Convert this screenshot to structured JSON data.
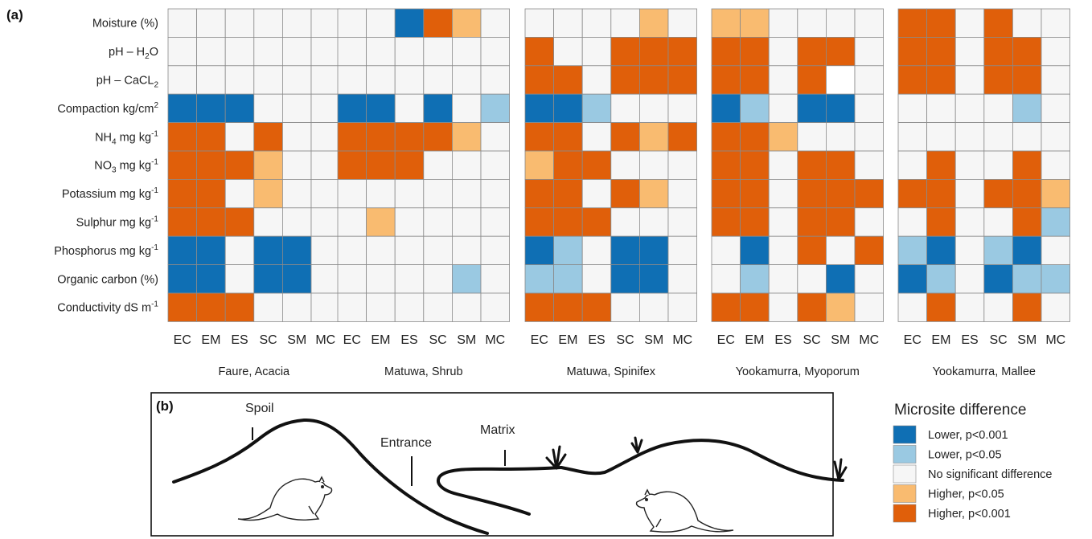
{
  "panel_a_label": "(a)",
  "panel_b_label": "(b)",
  "colors": {
    "L2": "#0f6fb4",
    "L1": "#9ac9e2",
    "N": "#f6f6f6",
    "H1": "#f9bb70",
    "H2": "#e05f0a",
    "W": "#ffffff",
    "grid": "#8a8a8a"
  },
  "chart_data": {
    "type": "heatmap",
    "row_labels": [
      [
        "Moisture (%)"
      ],
      [
        "pH – H",
        {
          "sub": "2"
        },
        "O"
      ],
      [
        "pH – CaCL",
        {
          "sub": "2"
        }
      ],
      [
        "Compaction kg/cm",
        {
          "sup": "2"
        }
      ],
      [
        "NH",
        {
          "sub": "4"
        },
        " mg kg",
        {
          "sup": "-1"
        }
      ],
      [
        "NO",
        {
          "sub": "3"
        },
        " mg kg",
        {
          "sup": "-1"
        }
      ],
      [
        "Potassium mg kg",
        {
          "sup": "-1"
        }
      ],
      [
        "Sulphur mg kg",
        {
          "sup": "-1"
        }
      ],
      [
        "Phosphorus mg kg",
        {
          "sup": "-1"
        }
      ],
      [
        "Organic carbon (%)"
      ],
      [
        "Conductivity dS m",
        {
          "sup": "-1"
        }
      ]
    ],
    "columns": [
      "EC",
      "EM",
      "ES",
      "SC",
      "SM",
      "MC"
    ],
    "legend": {
      "title": "Microsite difference",
      "items": [
        {
          "key": "L2",
          "label": "Lower, p<0.001"
        },
        {
          "key": "L1",
          "label": "Lower, p<0.05"
        },
        {
          "key": "N",
          "label": "No significant difference"
        },
        {
          "key": "H1",
          "label": "Higher, p<0.05"
        },
        {
          "key": "H2",
          "label": "Higher, p<0.001"
        }
      ]
    },
    "sites": [
      {
        "name": "Faure, Acacia",
        "cells": [
          [
            "N",
            "N",
            "N",
            "N",
            "N",
            "N"
          ],
          [
            "N",
            "N",
            "N",
            "N",
            "N",
            "N"
          ],
          [
            "N",
            "N",
            "N",
            "N",
            "N",
            "N"
          ],
          [
            "L2",
            "L2",
            "L2",
            "N",
            "N",
            "N"
          ],
          [
            "H2",
            "H2",
            "N",
            "H2",
            "N",
            "N"
          ],
          [
            "H2",
            "H2",
            "H2",
            "H1",
            "N",
            "N"
          ],
          [
            "H2",
            "H2",
            "N",
            "H1",
            "N",
            "N"
          ],
          [
            "H2",
            "H2",
            "H2",
            "N",
            "N",
            "N"
          ],
          [
            "L2",
            "L2",
            "N",
            "L2",
            "L2",
            "N"
          ],
          [
            "L2",
            "L2",
            "N",
            "L2",
            "L2",
            "N"
          ],
          [
            "H2",
            "H2",
            "H2",
            "N",
            "N",
            "N"
          ]
        ]
      },
      {
        "name": "Matuwa, Shrub",
        "cells": [
          [
            "N",
            "N",
            "L2",
            "H2",
            "H1",
            "N"
          ],
          [
            "N",
            "N",
            "N",
            "N",
            "N",
            "N"
          ],
          [
            "N",
            "N",
            "N",
            "N",
            "N",
            "N"
          ],
          [
            "L2",
            "L2",
            "N",
            "L2",
            "N",
            "L1"
          ],
          [
            "H2",
            "H2",
            "H2",
            "H2",
            "H1",
            "N"
          ],
          [
            "H2",
            "H2",
            "H2",
            "N",
            "N",
            "N"
          ],
          [
            "N",
            "N",
            "N",
            "N",
            "N",
            "N"
          ],
          [
            "N",
            "H1",
            "N",
            "N",
            "N",
            "N"
          ],
          [
            "N",
            "N",
            "N",
            "N",
            "N",
            "N"
          ],
          [
            "N",
            "N",
            "N",
            "N",
            "L1",
            "N"
          ],
          [
            "N",
            "N",
            "N",
            "N",
            "N",
            "N"
          ]
        ]
      },
      {
        "name": "Matuwa, Spinifex",
        "cells": [
          [
            "N",
            "N",
            "N",
            "N",
            "H1",
            "N"
          ],
          [
            "H2",
            "N",
            "N",
            "H2",
            "H2",
            "H2"
          ],
          [
            "H2",
            "H2",
            "N",
            "H2",
            "H2",
            "H2"
          ],
          [
            "L2",
            "L2",
            "L1",
            "N",
            "N",
            "N"
          ],
          [
            "H2",
            "H2",
            "N",
            "H2",
            "H1",
            "H2"
          ],
          [
            "H1",
            "H2",
            "H2",
            "N",
            "N",
            "N"
          ],
          [
            "H2",
            "H2",
            "N",
            "H2",
            "H1",
            "N"
          ],
          [
            "H2",
            "H2",
            "H2",
            "N",
            "N",
            "N"
          ],
          [
            "L2",
            "L1",
            "N",
            "L2",
            "L2",
            "N"
          ],
          [
            "L1",
            "L1",
            "N",
            "L2",
            "L2",
            "N"
          ],
          [
            "H2",
            "H2",
            "H2",
            "N",
            "N",
            "N"
          ]
        ]
      },
      {
        "name": "Yookamurra, Myoporum",
        "cells": [
          [
            "H1",
            "H1",
            "N",
            "N",
            "N",
            "N"
          ],
          [
            "H2",
            "H2",
            "N",
            "H2",
            "H2",
            "N"
          ],
          [
            "H2",
            "H2",
            "N",
            "H2",
            "W",
            "N"
          ],
          [
            "L2",
            "L1",
            "N",
            "L2",
            "L2",
            "N"
          ],
          [
            "H2",
            "H2",
            "H1",
            "N",
            "N",
            "N"
          ],
          [
            "H2",
            "H2",
            "N",
            "H2",
            "H2",
            "N"
          ],
          [
            "H2",
            "H2",
            "N",
            "H2",
            "H2",
            "H2"
          ],
          [
            "H2",
            "H2",
            "N",
            "H2",
            "H2",
            "N"
          ],
          [
            "N",
            "L2",
            "N",
            "H2",
            "N",
            "H2"
          ],
          [
            "N",
            "L1",
            "N",
            "N",
            "L2",
            "N"
          ],
          [
            "H2",
            "H2",
            "N",
            "H2",
            "H1",
            "N"
          ]
        ]
      },
      {
        "name": "Yookamurra, Mallee",
        "cells": [
          [
            "H2",
            "H2",
            "N",
            "H2",
            "N",
            "N"
          ],
          [
            "H2",
            "H2",
            "N",
            "H2",
            "H2",
            "N"
          ],
          [
            "H2",
            "H2",
            "N",
            "H2",
            "H2",
            "N"
          ],
          [
            "N",
            "N",
            "N",
            "N",
            "L1",
            "N"
          ],
          [
            "N",
            "N",
            "N",
            "N",
            "N",
            "N"
          ],
          [
            "N",
            "H2",
            "N",
            "N",
            "H2",
            "N"
          ],
          [
            "H2",
            "H2",
            "N",
            "H2",
            "H2",
            "H1"
          ],
          [
            "N",
            "H2",
            "N",
            "N",
            "H2",
            "L1"
          ],
          [
            "L1",
            "L2",
            "N",
            "L1",
            "L2",
            "N"
          ],
          [
            "L2",
            "L1",
            "N",
            "L2",
            "L1",
            "L1"
          ],
          [
            "N",
            "H2",
            "N",
            "N",
            "H2",
            "N"
          ]
        ]
      }
    ]
  },
  "panel_b": {
    "labels": {
      "spoil": "Spoil",
      "entrance": "Entrance",
      "matrix": "Matrix"
    }
  }
}
